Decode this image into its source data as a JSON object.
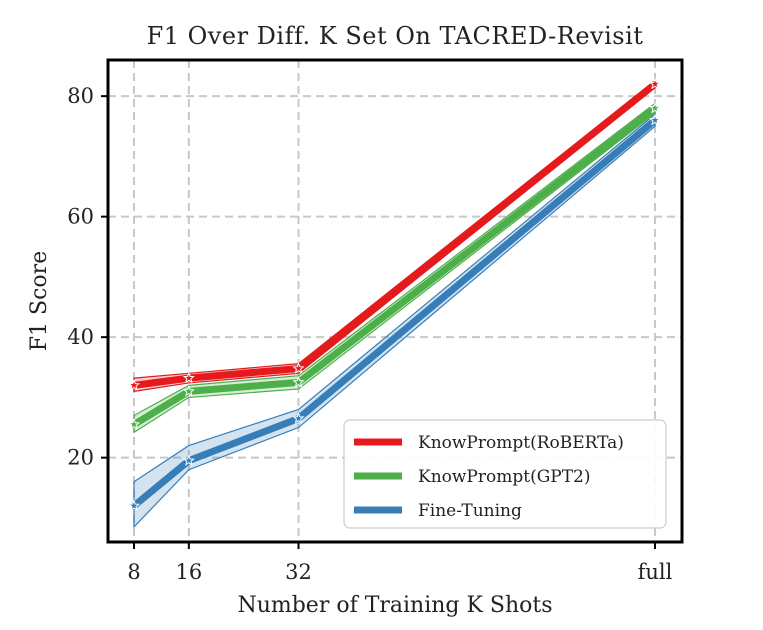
{
  "chart_data": {
    "type": "line",
    "title": "F1 Over Diff. K Set On TACRED-Revisit",
    "xlabel": "Number of Training K Shots",
    "ylabel": "F1 Score",
    "categories": [
      "8",
      "16",
      "32",
      "full"
    ],
    "x_positions": [
      8,
      16,
      32,
      84
    ],
    "ylim": [
      6,
      86
    ],
    "yticks": [
      20,
      40,
      60,
      80
    ],
    "grid": true,
    "legend_position": "lower-right",
    "series": [
      {
        "name": "KnowPrompt(RoBERTa)",
        "color": "#e41a1c",
        "values": [
          32.0,
          33.2,
          34.8,
          82.0
        ],
        "lower": [
          31.0,
          32.4,
          34.0,
          81.4
        ],
        "upper": [
          33.2,
          34.0,
          35.6,
          82.6
        ]
      },
      {
        "name": "KnowPrompt(GPT2)",
        "color": "#4daf4a",
        "values": [
          25.5,
          31.0,
          32.5,
          78.0
        ],
        "lower": [
          24.2,
          30.0,
          31.4,
          77.2
        ],
        "upper": [
          27.0,
          32.0,
          33.6,
          78.8
        ]
      },
      {
        "name": "Fine-Tuning",
        "color": "#377eb8",
        "values": [
          12.0,
          19.5,
          26.5,
          76.0
        ],
        "lower": [
          8.5,
          18.0,
          25.0,
          75.0
        ],
        "upper": [
          16.0,
          22.0,
          28.0,
          77.0
        ]
      }
    ]
  }
}
